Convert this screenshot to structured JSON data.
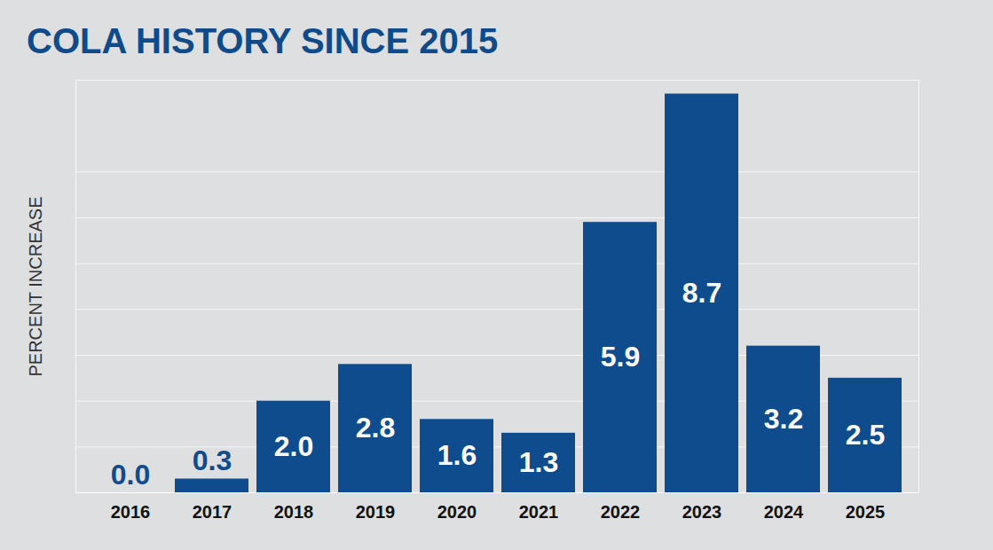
{
  "chart_data": {
    "type": "bar",
    "title": "COLA HISTORY SINCE 2015",
    "y_label": "PERCENT INCREASE",
    "categories": [
      "2016",
      "2017",
      "2018",
      "2019",
      "2020",
      "2021",
      "2022",
      "2023",
      "2024",
      "2025"
    ],
    "values": [
      0.0,
      0.3,
      2.0,
      2.8,
      1.6,
      1.3,
      5.9,
      8.7,
      3.2,
      2.5
    ],
    "value_labels": [
      "0.0",
      "0.3",
      "2.0",
      "2.8",
      "1.6",
      "1.3",
      "5.9",
      "8.7",
      "3.2",
      "2.5"
    ],
    "color": "#0f4c8e",
    "ylim": [
      0,
      9
    ],
    "yticks": [
      0,
      1,
      2,
      3,
      4,
      5,
      6,
      7
    ],
    "grid": true,
    "data_labels": true,
    "tick_labels": "x"
  }
}
